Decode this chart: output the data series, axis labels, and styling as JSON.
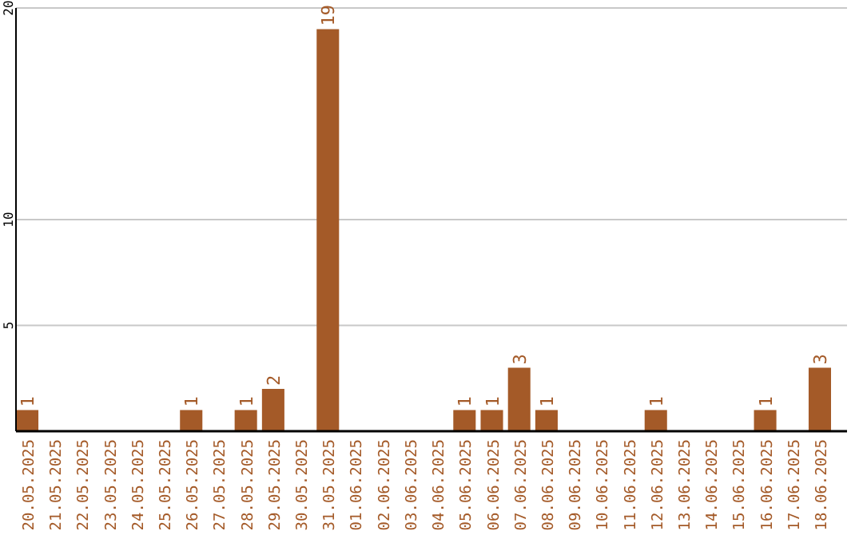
{
  "chart_data": {
    "type": "bar",
    "categories": [
      "20.05.2025",
      "21.05.2025",
      "22.05.2025",
      "23.05.2025",
      "24.05.2025",
      "25.05.2025",
      "26.05.2025",
      "27.05.2025",
      "28.05.2025",
      "29.05.2025",
      "30.05.2025",
      "31.05.2025",
      "01.06.2025",
      "02.06.2025",
      "03.06.2025",
      "04.06.2025",
      "05.06.2025",
      "06.06.2025",
      "07.06.2025",
      "08.06.2025",
      "09.06.2025",
      "10.06.2025",
      "11.06.2025",
      "12.06.2025",
      "13.06.2025",
      "14.06.2025",
      "15.06.2025",
      "16.06.2025",
      "17.06.2025",
      "18.06.2025"
    ],
    "values": [
      1,
      0,
      0,
      0,
      0,
      0,
      1,
      0,
      1,
      2,
      0,
      19,
      0,
      0,
      0,
      0,
      1,
      1,
      3,
      1,
      0,
      0,
      0,
      1,
      0,
      0,
      0,
      1,
      0,
      3
    ],
    "value_labels": [
      "1",
      null,
      null,
      null,
      null,
      null,
      "1",
      null,
      "1",
      "2",
      null,
      "19",
      null,
      null,
      null,
      null,
      "1",
      "1",
      "3",
      "1",
      null,
      null,
      null,
      "1",
      null,
      null,
      null,
      "1",
      null,
      "3"
    ],
    "color": "#a45a28",
    "ylim": [
      0,
      20
    ],
    "yticks": [
      5,
      10,
      20
    ],
    "grid": "y"
  }
}
